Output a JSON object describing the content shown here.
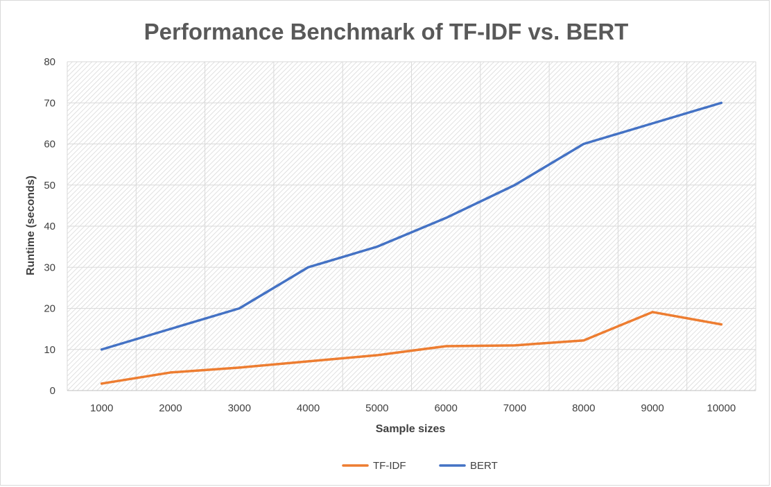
{
  "chart_data": {
    "type": "line",
    "title": "Performance Benchmark of TF-IDF vs. BERT",
    "xlabel": "Sample sizes",
    "ylabel": "Runtime (seconds)",
    "categories": [
      "1000",
      "2000",
      "3000",
      "4000",
      "5000",
      "6000",
      "7000",
      "8000",
      "9000",
      "10000"
    ],
    "ylim": [
      0,
      80
    ],
    "yticks": [
      "0",
      "10",
      "20",
      "30",
      "40",
      "50",
      "60",
      "70",
      "80"
    ],
    "grid": true,
    "legend_position": "bottom",
    "series": [
      {
        "name": "TF-IDF",
        "color": "#ed7d31",
        "values": [
          1.7,
          4.4,
          5.6,
          7.1,
          8.6,
          10.8,
          11.0,
          12.2,
          19.1,
          16.1
        ]
      },
      {
        "name": "BERT",
        "color": "#4472c4",
        "values": [
          10,
          15,
          20,
          30,
          35,
          42,
          50,
          60,
          65,
          70
        ]
      }
    ]
  }
}
